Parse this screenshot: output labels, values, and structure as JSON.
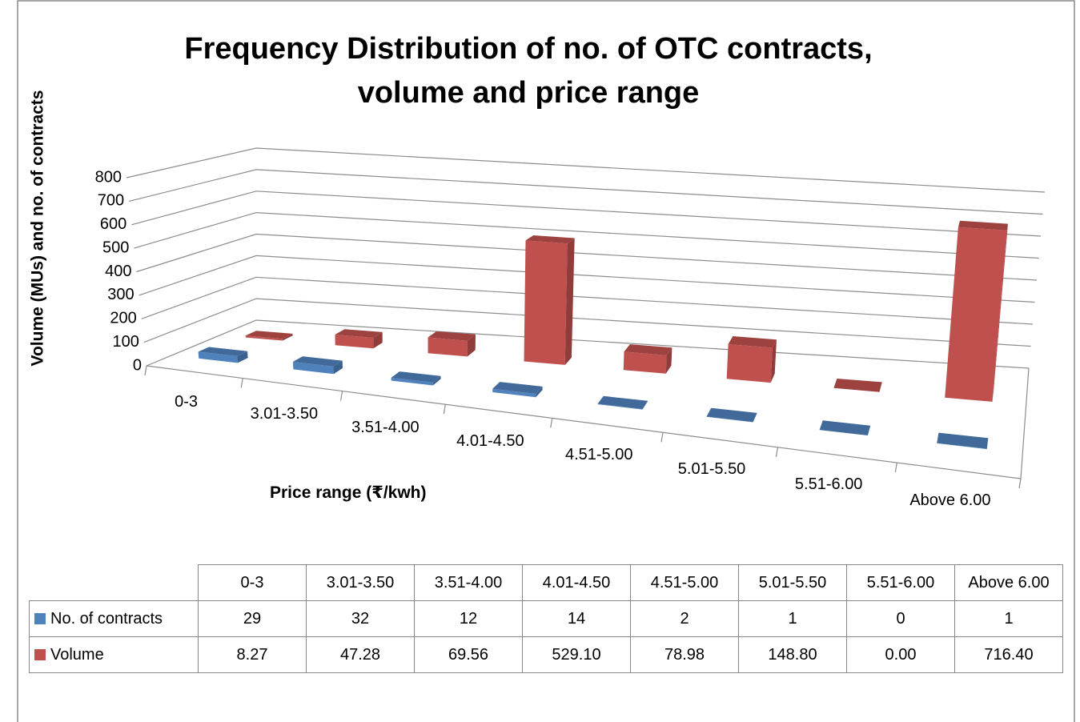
{
  "chart_data": {
    "type": "bar3d",
    "title": "Frequency Distribution of no. of OTC contracts, volume and price range",
    "x_label": "Price range (₹/kwh)",
    "y_label": "Volume (MUs) and no. of contracts",
    "categories": [
      "0-3",
      "3.01-3.50",
      "3.51-4.00",
      "4.01-4.50",
      "4.51-5.00",
      "5.01-5.50",
      "5.51-6.00",
      "Above 6.00"
    ],
    "series": [
      {
        "name": "No. of contracts",
        "color": "#4f81bd",
        "values": [
          29,
          32,
          12,
          14,
          2,
          1,
          0,
          1
        ]
      },
      {
        "name": "Volume",
        "color": "#c0504d",
        "values": [
          8.27,
          47.28,
          69.56,
          529.1,
          78.98,
          148.8,
          0.0,
          716.4
        ],
        "value_labels": [
          "8.27",
          "47.28",
          "69.56",
          "529.10",
          "78.98",
          "148.80",
          "0.00",
          "716.40"
        ]
      }
    ],
    "ylim": [
      0,
      800
    ],
    "yticks": [
      0,
      100,
      200,
      300,
      400,
      500,
      600,
      700,
      800
    ],
    "grid": true,
    "data_table": true
  }
}
